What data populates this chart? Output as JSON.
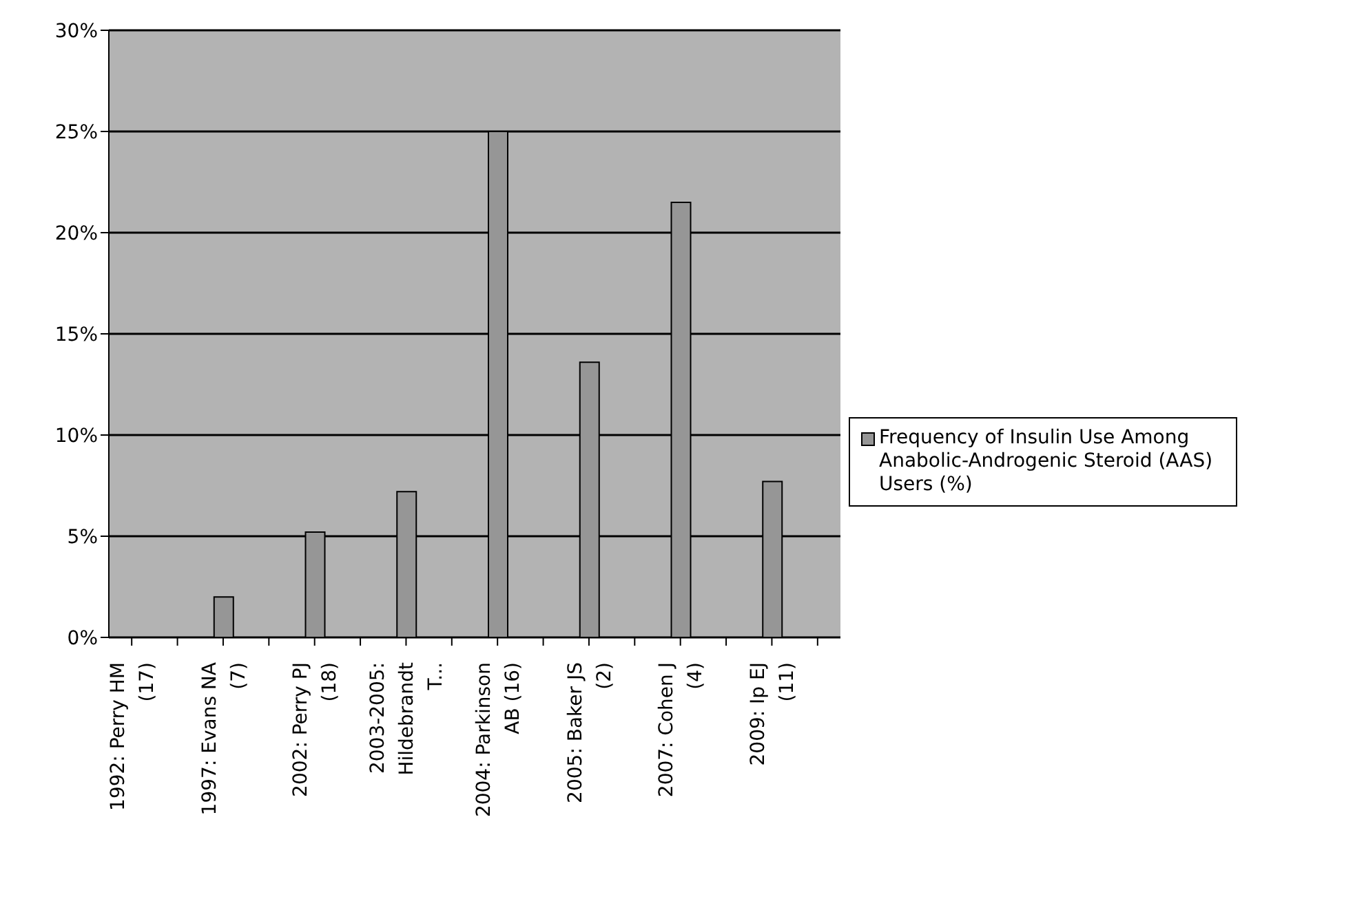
{
  "chart_data": {
    "type": "bar",
    "categories": [
      "1992: Perry HM (17)",
      null,
      "1997: Evans NA (7)",
      null,
      "2002: Perry PJ (18)",
      null,
      "2003-2005: Hildebrandt T...",
      null,
      "2004: Parkinson AB (16)",
      null,
      "2005: Baker JS (2)",
      null,
      "2007: Cohen J (4)",
      null,
      "2009: Ip EJ (11)",
      null
    ],
    "series": [
      {
        "name": "Frequency of Insulin Use Among Anabolic-Androgenic Steroid (AAS) Users (%)",
        "color": "#969696",
        "values": [
          0,
          null,
          2.0,
          null,
          5.2,
          null,
          7.2,
          null,
          25,
          null,
          13.6,
          null,
          21.5,
          null,
          7.7,
          null
        ]
      }
    ],
    "ylim": [
      0,
      30
    ],
    "yticks": [
      {
        "value": 0,
        "label": "0%"
      },
      {
        "value": 5,
        "label": "5%"
      },
      {
        "value": 10,
        "label": "10%"
      },
      {
        "value": 15,
        "label": "15%"
      },
      {
        "value": 20,
        "label": "20%"
      },
      {
        "value": 25,
        "label": "25%"
      },
      {
        "value": 30,
        "label": "30%"
      }
    ],
    "grid": "y",
    "legend": "right"
  }
}
